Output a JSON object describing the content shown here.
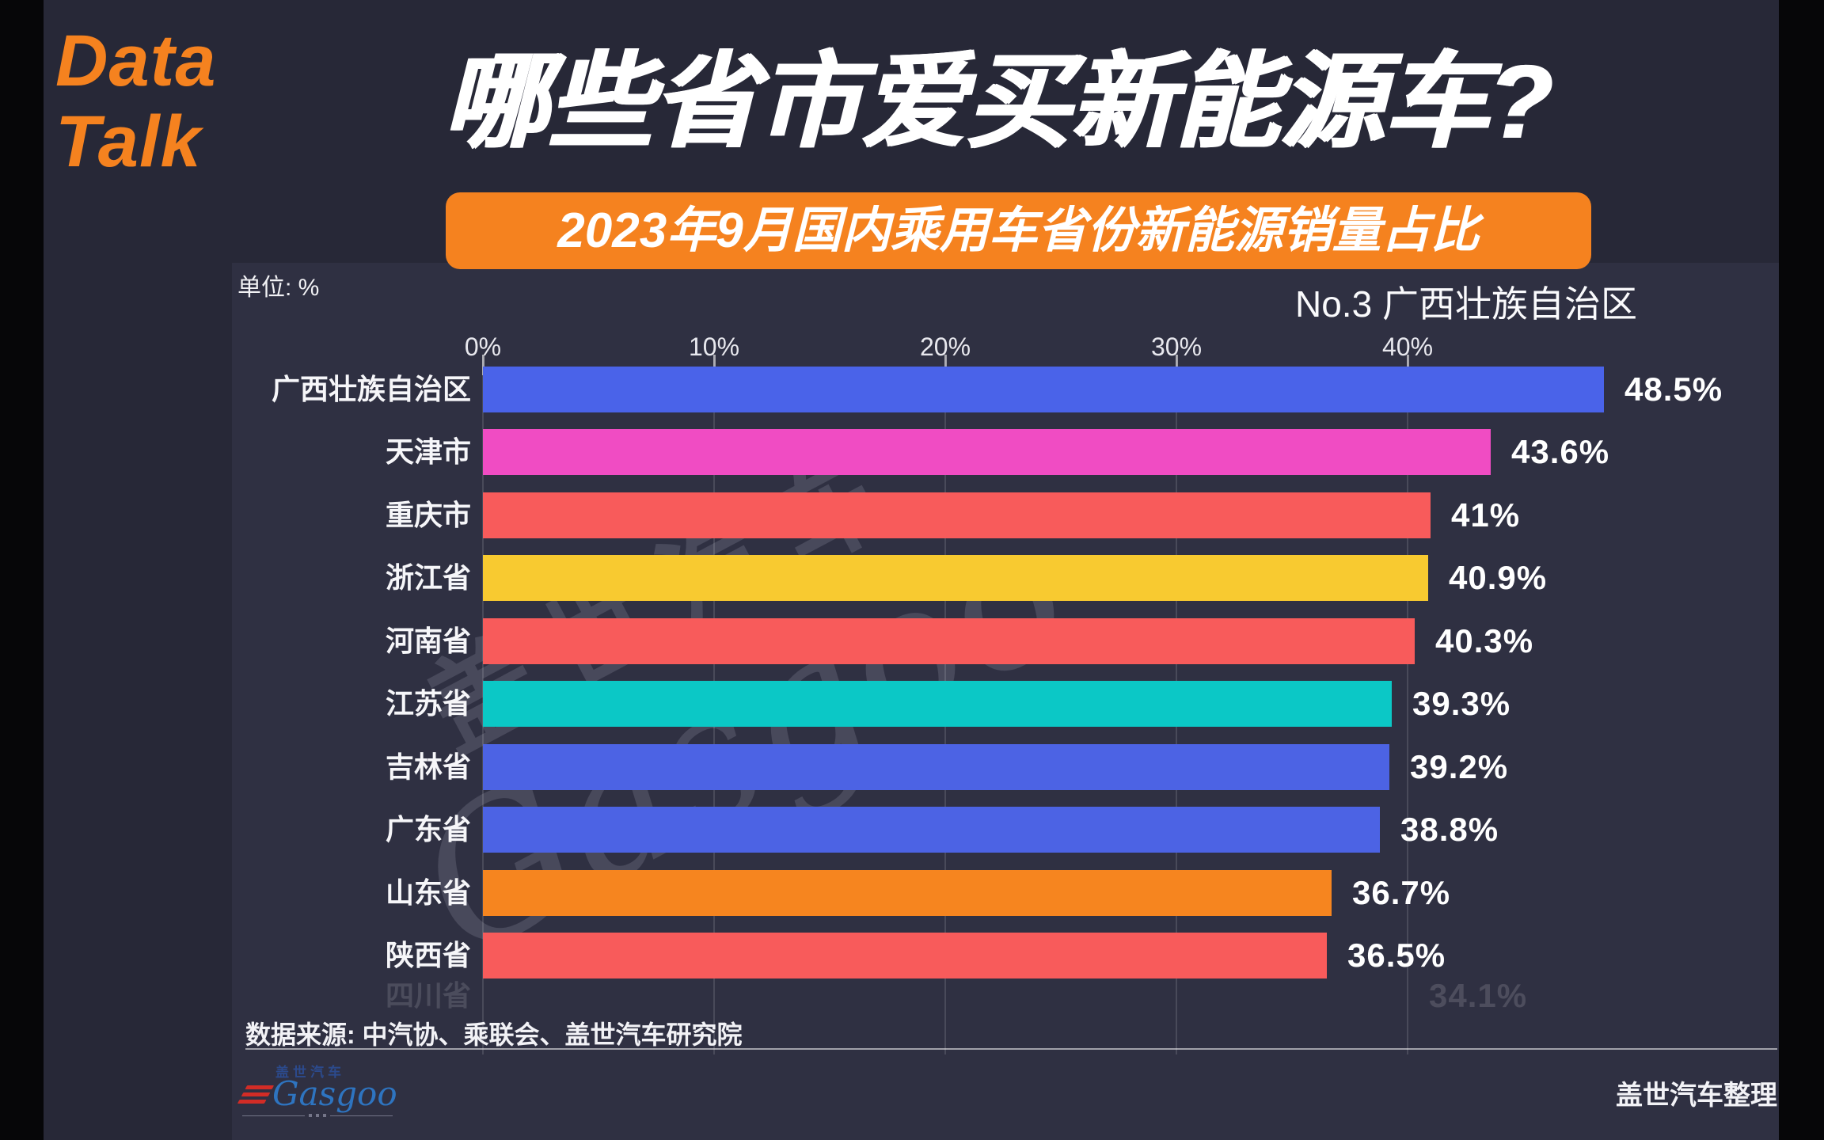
{
  "brand": {
    "line1": "Data",
    "line2": "Talk"
  },
  "title": "哪些省市爱买新能源车?",
  "subtitle": "2023年9月国内乘用车省份新能源销量占比",
  "unit_label": "单位: %",
  "rank_badge": "No.3 广西壮族自治区",
  "source_note": "数据来源: 中汽协、乘联会、盖世汽车研究院",
  "footer_credit": "盖世汽车整理",
  "logo": {
    "cn": "盖世汽车",
    "en": "Gasgoo"
  },
  "watermark": {
    "cn": "盖世汽车",
    "en": "Gasgoo"
  },
  "colors": {
    "accent": "#F5821F",
    "background": "#272837",
    "panel": "#2F3042",
    "bar_blue": "#4C63E4",
    "bar_magenta": "#F04CC3",
    "bar_red": "#F85B5B",
    "bar_yellow": "#F8CA30",
    "bar_cyan": "#0BC8C6",
    "bar_orange": "#F6851F"
  },
  "chart_data": {
    "type": "bar",
    "orientation": "horizontal",
    "unit": "%",
    "title": "2023年9月国内乘用车省份新能源销量占比",
    "x_ticks": [
      "0%",
      "10%",
      "20%",
      "30%",
      "40%"
    ],
    "x_tick_values": [
      0,
      10,
      20,
      30,
      40
    ],
    "x_max_percent": 58,
    "grid": true,
    "rows": [
      {
        "label": "广西壮族自治区",
        "value": 48.5,
        "value_label": "48.5%",
        "color": "#4A63E9"
      },
      {
        "label": "天津市",
        "value": 43.6,
        "value_label": "43.6%",
        "color": "#F04CC3"
      },
      {
        "label": "重庆市",
        "value": 41.0,
        "value_label": "41%",
        "color": "#F85B5B"
      },
      {
        "label": "浙江省",
        "value": 40.9,
        "value_label": "40.9%",
        "color": "#F8CA30"
      },
      {
        "label": "河南省",
        "value": 40.3,
        "value_label": "40.3%",
        "color": "#F85B5B"
      },
      {
        "label": "江苏省",
        "value": 39.3,
        "value_label": "39.3%",
        "color": "#0BC8C6"
      },
      {
        "label": "吉林省",
        "value": 39.2,
        "value_label": "39.2%",
        "color": "#4C63E4"
      },
      {
        "label": "广东省",
        "value": 38.8,
        "value_label": "38.8%",
        "color": "#4C63E4"
      },
      {
        "label": "山东省",
        "value": 36.7,
        "value_label": "36.7%",
        "color": "#F6851F"
      },
      {
        "label": "陕西省",
        "value": 36.5,
        "value_label": "36.5%",
        "color": "#F85B5B"
      }
    ],
    "ghost_row": {
      "label": "四川省",
      "value_label": "34.1%"
    }
  }
}
